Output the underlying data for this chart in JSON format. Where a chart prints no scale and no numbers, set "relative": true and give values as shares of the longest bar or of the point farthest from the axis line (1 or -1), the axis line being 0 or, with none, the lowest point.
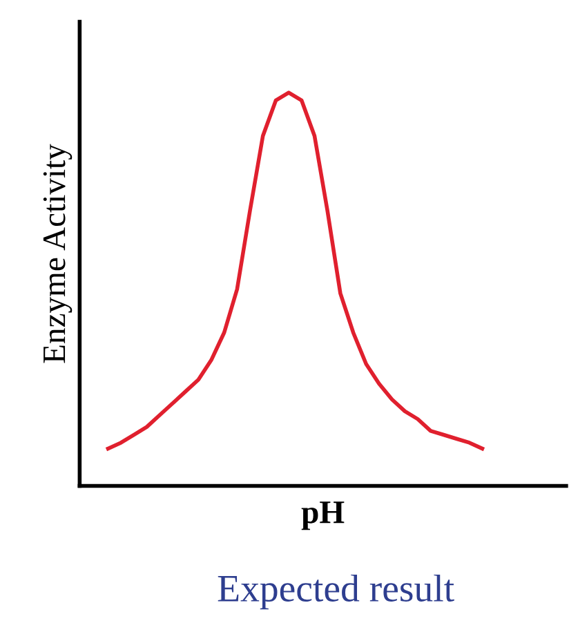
{
  "chart_data": {
    "type": "line",
    "relative": true,
    "xlabel": "pH",
    "ylabel": "Enzyme Activity",
    "annotations": [
      "Expected result"
    ],
    "categories": [
      null,
      null,
      null,
      null,
      null,
      null,
      null,
      null,
      null,
      null,
      null,
      null,
      null,
      null,
      null,
      null,
      null,
      null,
      null,
      null,
      null,
      null,
      null,
      null,
      null,
      null,
      null,
      null,
      null,
      null
    ],
    "series": [
      {
        "color": "#e0202e",
        "values": [
          0.095,
          0.11,
          0.13,
          0.15,
          0.18,
          0.21,
          0.24,
          0.27,
          0.32,
          0.39,
          0.5,
          0.7,
          0.89,
          0.98,
          1,
          0.98,
          0.89,
          0.7,
          0.49,
          0.39,
          0.31,
          0.26,
          0.22,
          0.19,
          0.17,
          0.14,
          0.13,
          0.12,
          0.11,
          0.095
        ]
      }
    ],
    "grid": false,
    "legend": false,
    "marker": "none",
    "line_style": "solid"
  }
}
